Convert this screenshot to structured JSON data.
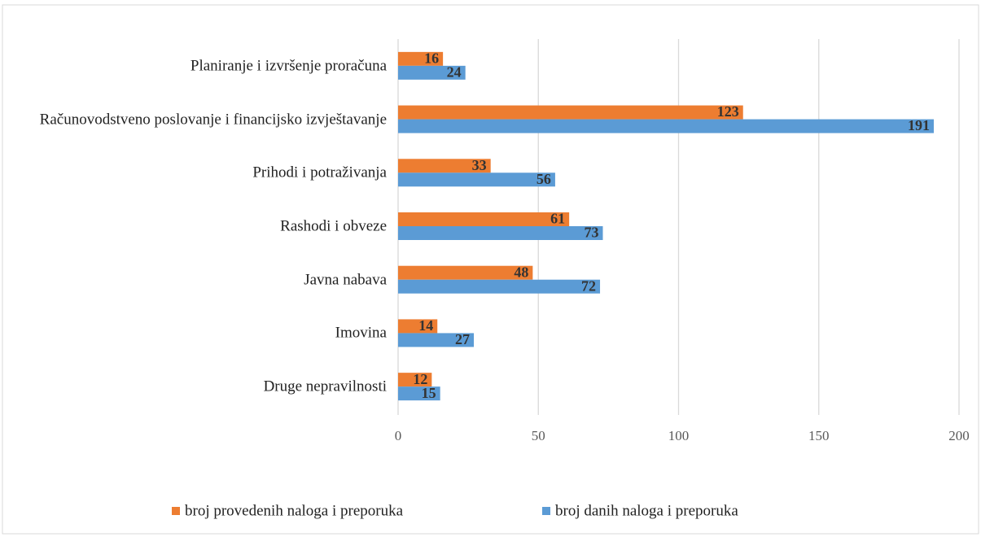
{
  "chart_data": {
    "type": "hbar",
    "categories": [
      "Planiranje i izvršenje proračuna",
      "Računovodstveno poslovanje i financijsko izvještavanje",
      "Prihodi i potraživanja",
      "Rashodi i obveze",
      "Javna nabava",
      "Imovina",
      "Druge nepravilnosti"
    ],
    "series": [
      {
        "name": "broj provedenih naloga i preporuka",
        "color": "#ed7d31",
        "values": [
          16,
          123,
          33,
          61,
          48,
          14,
          12
        ]
      },
      {
        "name": "broj danih naloga i preporuka",
        "color": "#5b9bd5",
        "values": [
          24,
          191,
          56,
          73,
          72,
          27,
          15
        ]
      }
    ],
    "xlim": [
      0,
      200
    ],
    "xticks": [
      0,
      50,
      100,
      150,
      200
    ],
    "grid": true,
    "legend": "bottom"
  }
}
